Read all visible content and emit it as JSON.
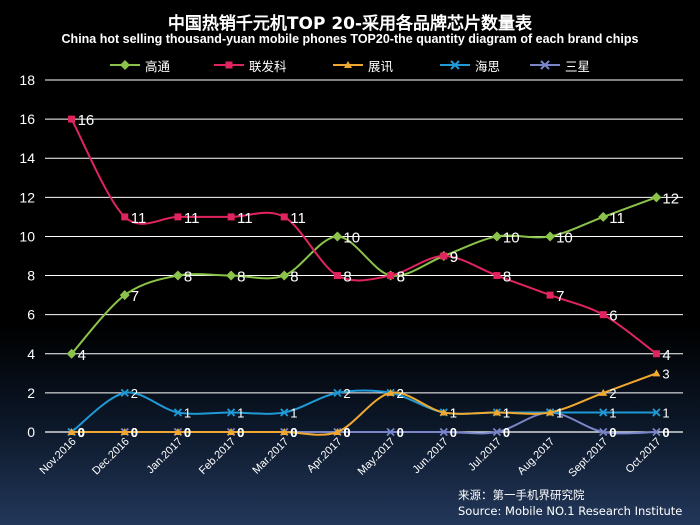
{
  "header": {
    "title": "中国热销千元机TOP 20-采用各品牌芯片数量表",
    "subtitle": "China hot selling thousand-yuan mobile phones TOP20-the quantity diagram of each brand chips"
  },
  "source": {
    "line1": "来源：第一手机界研究院",
    "line2": "Source: Mobile NO.1 Research Institute"
  },
  "colors": {
    "高通": "#8bc34a",
    "联发科": "#e0245e",
    "展讯": "#f0a830",
    "海思": "#1f9ad6",
    "三星": "#7a86c8"
  },
  "chart_data": {
    "type": "line",
    "categories": [
      "Nov.2016",
      "Dec.2016",
      "Jan.2017",
      "Feb.2017",
      "Mar.2017",
      "Apr.2017",
      "May.2017",
      "Jun.2017",
      "Jul.2017",
      "Aug.2017",
      "Sept.2017",
      "Oct.2017"
    ],
    "ylim": [
      0,
      18
    ],
    "yticks": [
      0,
      2,
      4,
      6,
      8,
      10,
      12,
      14,
      16,
      18
    ],
    "grid": true,
    "legend": "top",
    "series": [
      {
        "name": "高通",
        "marker": "diamond",
        "values": [
          4,
          7,
          8,
          8,
          8,
          10,
          8,
          9,
          10,
          10,
          11,
          12
        ]
      },
      {
        "name": "联发科",
        "marker": "square",
        "values": [
          16,
          11,
          11,
          11,
          11,
          8,
          8,
          9,
          8,
          7,
          6,
          4
        ]
      },
      {
        "name": "展讯",
        "marker": "triangle",
        "values": [
          0,
          0,
          0,
          0,
          0,
          0,
          2,
          1,
          1,
          1,
          2,
          3
        ]
      },
      {
        "name": "海思",
        "marker": "x",
        "values": [
          0,
          2,
          1,
          1,
          1,
          2,
          2,
          1,
          1,
          1,
          1,
          1
        ]
      },
      {
        "name": "三星",
        "marker": "x",
        "values": [
          0,
          0,
          0,
          0,
          0,
          0,
          0,
          0,
          0,
          1,
          0,
          0
        ]
      }
    ]
  }
}
